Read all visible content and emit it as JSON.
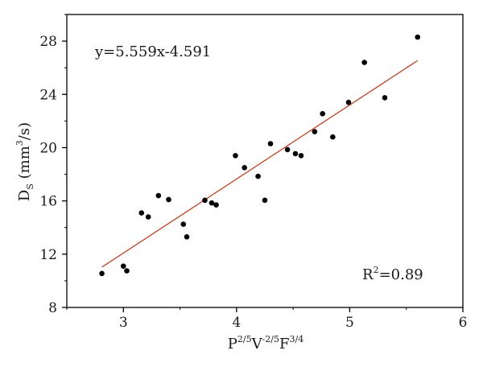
{
  "chart_data": {
    "type": "scatter",
    "title": "",
    "xlabel": {
      "base": "P",
      "sup1": "2/5",
      "mid": "V",
      "sup2": "-2/5",
      "tail": "F",
      "sup3": "3/4"
    },
    "ylabel": {
      "base": "D",
      "sub": "S",
      "pre": " (mm",
      "sup": "3",
      "post": "/s)"
    },
    "xlim": [
      2.5,
      6
    ],
    "ylim": [
      8,
      30
    ],
    "xticks": [
      3,
      4,
      5,
      6
    ],
    "yticks": [
      8,
      12,
      16,
      20,
      24,
      28
    ],
    "grid": false,
    "points": [
      {
        "x": 2.81,
        "y": 10.55
      },
      {
        "x": 3.0,
        "y": 11.1
      },
      {
        "x": 3.03,
        "y": 10.75
      },
      {
        "x": 3.16,
        "y": 15.1
      },
      {
        "x": 3.22,
        "y": 14.8
      },
      {
        "x": 3.31,
        "y": 16.4
      },
      {
        "x": 3.4,
        "y": 16.1
      },
      {
        "x": 3.53,
        "y": 14.25
      },
      {
        "x": 3.56,
        "y": 13.3
      },
      {
        "x": 3.72,
        "y": 16.05
      },
      {
        "x": 3.78,
        "y": 15.85
      },
      {
        "x": 3.82,
        "y": 15.7
      },
      {
        "x": 3.99,
        "y": 19.4
      },
      {
        "x": 4.07,
        "y": 18.5
      },
      {
        "x": 4.19,
        "y": 17.85
      },
      {
        "x": 4.25,
        "y": 16.05
      },
      {
        "x": 4.3,
        "y": 20.3
      },
      {
        "x": 4.45,
        "y": 19.85
      },
      {
        "x": 4.52,
        "y": 19.55
      },
      {
        "x": 4.57,
        "y": 19.4
      },
      {
        "x": 4.69,
        "y": 21.2
      },
      {
        "x": 4.76,
        "y": 22.55
      },
      {
        "x": 4.85,
        "y": 20.8
      },
      {
        "x": 4.99,
        "y": 23.4
      },
      {
        "x": 5.13,
        "y": 26.4
      },
      {
        "x": 5.31,
        "y": 23.75
      },
      {
        "x": 5.6,
        "y": 28.3
      }
    ],
    "fit": {
      "slope": 5.559,
      "intercept": -4.591,
      "x_range": [
        2.81,
        5.6
      ],
      "color": "#cc3a1a"
    },
    "equation_text": "y=5.559x-4.591",
    "r2_text": {
      "base": "R",
      "sup": "2",
      "rest": "=0.89"
    },
    "point_color": "#000000"
  }
}
